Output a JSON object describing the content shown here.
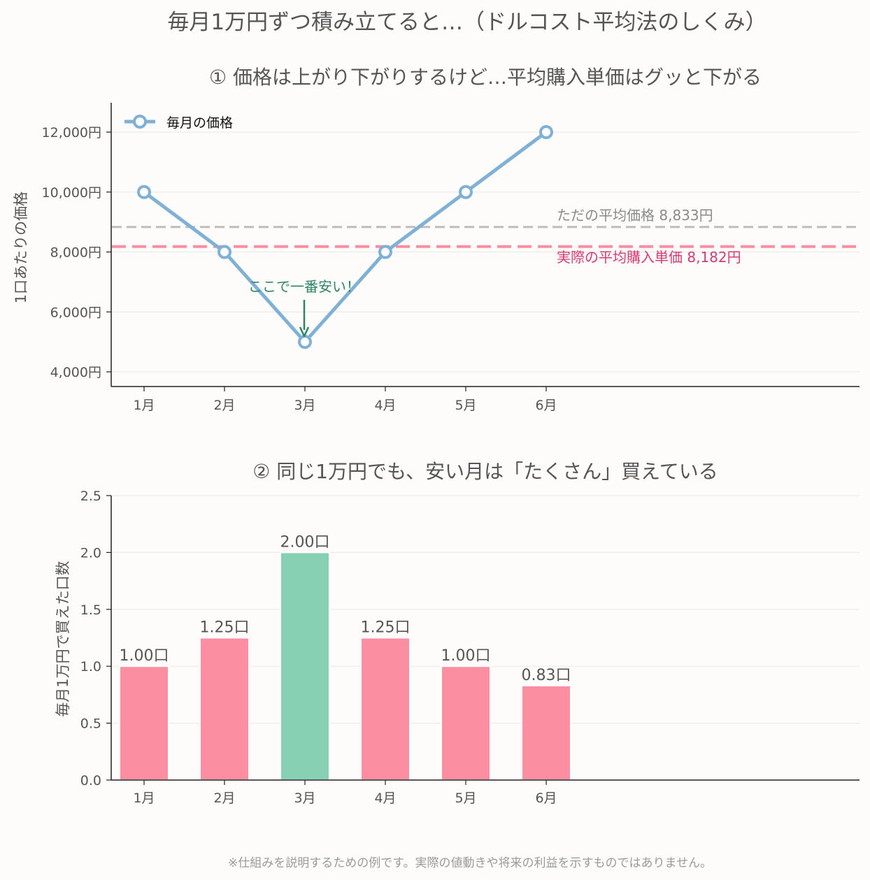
{
  "title": "毎月1万円ずつ積み立てると…（ドルコスト平均法のしくみ）",
  "footnote": "※仕組みを説明するための例です。実際の値動きや将来の利益を示すものではありません。",
  "colors": {
    "price_line": "#7fb0d5",
    "simple_avg": "#bdbdbd",
    "actual_avg": "#fb8ea1",
    "bar_normal": "#fb8ea1",
    "bar_highlight": "#88d0b4",
    "annotation": "#2e8467",
    "simple_avg_text": "#8a8a8a",
    "actual_avg_text": "#d63a70",
    "text": "#555555"
  },
  "chart_data": [
    {
      "type": "line",
      "title": "① 価格は上がり下がりするけど…平均購入単価はグッと下がる",
      "xlabel": "",
      "ylabel": "1口あたりの価格",
      "categories": [
        "1月",
        "2月",
        "3月",
        "4月",
        "5月",
        "6月"
      ],
      "series": [
        {
          "name": "毎月の価格",
          "values": [
            10000,
            8000,
            5000,
            8000,
            10000,
            12000
          ]
        }
      ],
      "yticks": [
        {
          "value": 4000,
          "label": "4,000円"
        },
        {
          "value": 6000,
          "label": "6,000円"
        },
        {
          "value": 8000,
          "label": "8,000円"
        },
        {
          "value": 10000,
          "label": "10,000円"
        },
        {
          "value": 12000,
          "label": "12,000円"
        }
      ],
      "ylim": [
        3500,
        13000
      ],
      "grid": "horizontal",
      "legend": "top-left",
      "reference_lines": [
        {
          "value": 8833,
          "label": "ただの平均価格 8,833円",
          "style": "dashed"
        },
        {
          "value": 8182,
          "label": "実際の平均購入単価 8,182円",
          "style": "dashed"
        }
      ],
      "annotation": {
        "text": "ここで一番安い！",
        "category": "3月",
        "value": 5000
      }
    },
    {
      "type": "bar",
      "title": "② 同じ1万円でも、安い月は「たくさん」買えている",
      "xlabel": "",
      "ylabel": "毎月1万円で買えた口数",
      "categories": [
        "1月",
        "2月",
        "3月",
        "4月",
        "5月",
        "6月"
      ],
      "values": [
        1.0,
        1.25,
        2.0,
        1.25,
        1.0,
        0.83
      ],
      "data_labels": [
        "1.00口",
        "1.25口",
        "2.00口",
        "1.25口",
        "1.00口",
        "0.83口"
      ],
      "highlight_category": "3月",
      "yticks": [
        {
          "value": 0,
          "label": "0.0"
        },
        {
          "value": 0.5,
          "label": "0.5"
        },
        {
          "value": 1,
          "label": "1.0"
        },
        {
          "value": 1.5,
          "label": "1.5"
        },
        {
          "value": 2,
          "label": "2.0"
        },
        {
          "value": 2.5,
          "label": "2.5"
        }
      ],
      "ylim": [
        0,
        2.5
      ],
      "grid": "horizontal"
    }
  ]
}
